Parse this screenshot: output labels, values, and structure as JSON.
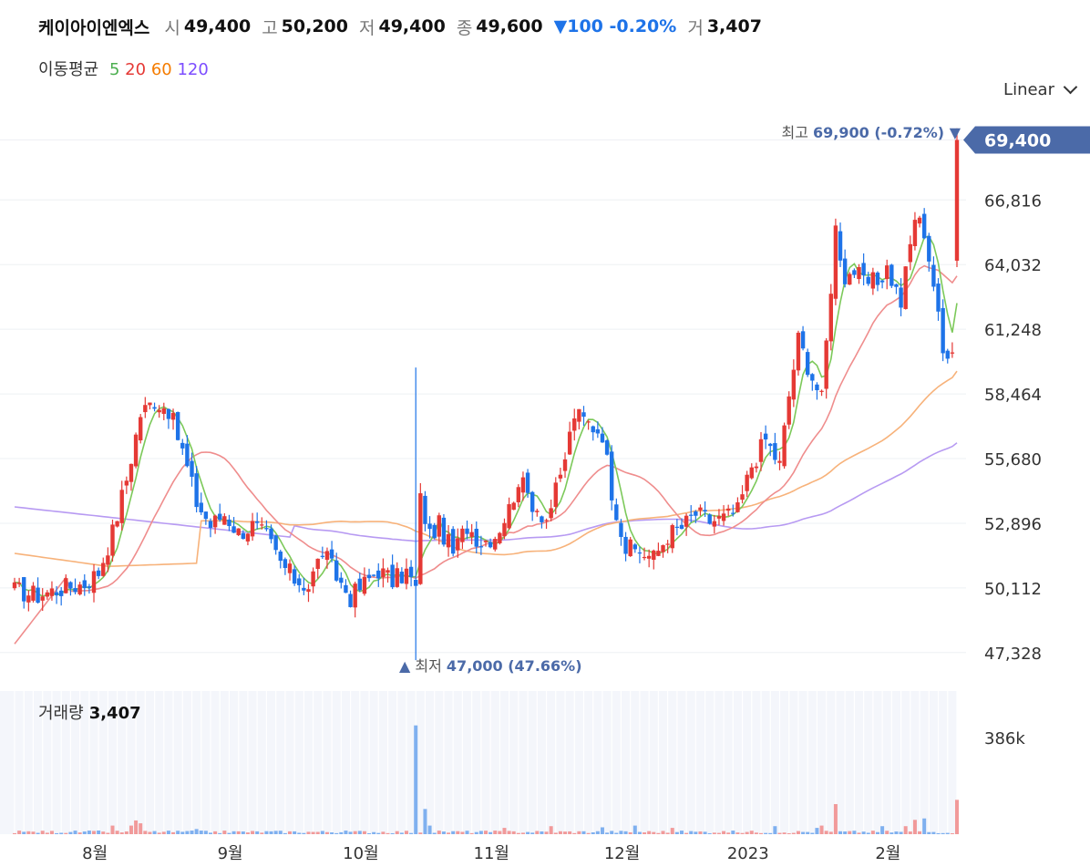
{
  "header": {
    "name": "케이아이엔엑스",
    "open_label": "시",
    "open": "49,400",
    "high_label": "고",
    "high": "50,200",
    "low_label": "저",
    "low": "49,400",
    "close_label": "종",
    "close": "49,600",
    "change": "▼100 -0.20%",
    "vol_label": "거",
    "volume": "3,407"
  },
  "moving_average": {
    "label": "이동평균",
    "periods": [
      {
        "label": "5",
        "color": "#4caf50"
      },
      {
        "label": "20",
        "color": "#e53935"
      },
      {
        "label": "60",
        "color": "#f57c00"
      },
      {
        "label": "120",
        "color": "#7c4dff"
      }
    ]
  },
  "scale_selector": "Linear",
  "chart_data": {
    "type": "candlestick",
    "y_ticks": [
      "66,816",
      "64,032",
      "61,248",
      "58,464",
      "55,680",
      "52,896",
      "50,112",
      "47,328"
    ],
    "ylim": [
      46300,
      70400
    ],
    "x_ticks": [
      "8월",
      "9월",
      "10월",
      "11월",
      "12월",
      "2023",
      "2월"
    ],
    "current_price": "69,400",
    "max_annotation": {
      "label": "최고",
      "value": "69,900 (-0.72%)",
      "marker": "▼"
    },
    "min_annotation": {
      "label": "최저",
      "value": "47,000 (47.66%)",
      "marker": "▲"
    },
    "volume": {
      "label": "거래량",
      "value": "3,407",
      "y_tick": "386k",
      "ymax": 500
    },
    "colors": {
      "up": "#e53935",
      "down": "#1e73e8",
      "ma5": "#7cc95a",
      "ma20": "#ef8d8d",
      "ma60": "#f7b27a",
      "ma120": "#b79af2",
      "accent": "#4b6aa8"
    },
    "anchors": [
      [
        0,
        50000
      ],
      [
        5,
        49800
      ],
      [
        10,
        50100
      ],
      [
        15,
        50300
      ],
      [
        18,
        50800
      ],
      [
        21,
        52500
      ],
      [
        24,
        54800
      ],
      [
        27,
        57600
      ],
      [
        30,
        58200
      ],
      [
        33,
        57800
      ],
      [
        36,
        56000
      ],
      [
        39,
        53800
      ],
      [
        42,
        52800
      ],
      [
        45,
        53300
      ],
      [
        48,
        52500
      ],
      [
        51,
        52800
      ],
      [
        54,
        52300
      ],
      [
        57,
        51200
      ],
      [
        60,
        50500
      ],
      [
        63,
        50200
      ],
      [
        66,
        51700
      ],
      [
        69,
        50600
      ],
      [
        72,
        49700
      ],
      [
        75,
        50300
      ],
      [
        78,
        50900
      ],
      [
        81,
        50400
      ],
      [
        84,
        50800
      ],
      [
        86,
        50100
      ],
      [
        87,
        53900
      ],
      [
        89,
        52400
      ],
      [
        91,
        52800
      ],
      [
        94,
        51600
      ],
      [
        97,
        52800
      ],
      [
        100,
        52100
      ],
      [
        103,
        52400
      ],
      [
        106,
        53500
      ],
      [
        108,
        54800
      ],
      [
        111,
        53800
      ],
      [
        114,
        53100
      ],
      [
        117,
        54800
      ],
      [
        120,
        57600
      ],
      [
        123,
        57200
      ],
      [
        126,
        56800
      ],
      [
        128,
        54300
      ],
      [
        131,
        51800
      ],
      [
        134,
        51700
      ],
      [
        137,
        51400
      ],
      [
        140,
        52400
      ],
      [
        143,
        52700
      ],
      [
        146,
        53300
      ],
      [
        149,
        53000
      ],
      [
        152,
        53100
      ],
      [
        155,
        53400
      ],
      [
        158,
        55400
      ],
      [
        161,
        56500
      ],
      [
        164,
        55400
      ],
      [
        166,
        58400
      ],
      [
        168,
        60800
      ],
      [
        171,
        59200
      ],
      [
        173,
        58200
      ],
      [
        176,
        65600
      ],
      [
        178,
        63500
      ],
      [
        180,
        63800
      ],
      [
        182,
        63200
      ],
      [
        185,
        63300
      ],
      [
        187,
        63900
      ],
      [
        190,
        62400
      ],
      [
        193,
        66100
      ],
      [
        195,
        65500
      ],
      [
        197,
        63200
      ],
      [
        199,
        60200
      ],
      [
        201,
        60600
      ],
      [
        202,
        69400
      ]
    ],
    "volumes": {
      "base": 8,
      "spikes": [
        [
          21,
          30
        ],
        [
          25,
          30
        ],
        [
          26,
          48
        ],
        [
          27,
          38
        ],
        [
          39,
          18
        ],
        [
          86,
          380
        ],
        [
          88,
          88
        ],
        [
          89,
          30
        ],
        [
          105,
          22
        ],
        [
          115,
          28
        ],
        [
          126,
          24
        ],
        [
          133,
          30
        ],
        [
          141,
          22
        ],
        [
          163,
          28
        ],
        [
          172,
          22
        ],
        [
          173,
          30
        ],
        [
          176,
          105
        ],
        [
          186,
          28
        ],
        [
          191,
          28
        ],
        [
          193,
          50
        ],
        [
          195,
          55
        ],
        [
          202,
          120
        ]
      ]
    }
  }
}
